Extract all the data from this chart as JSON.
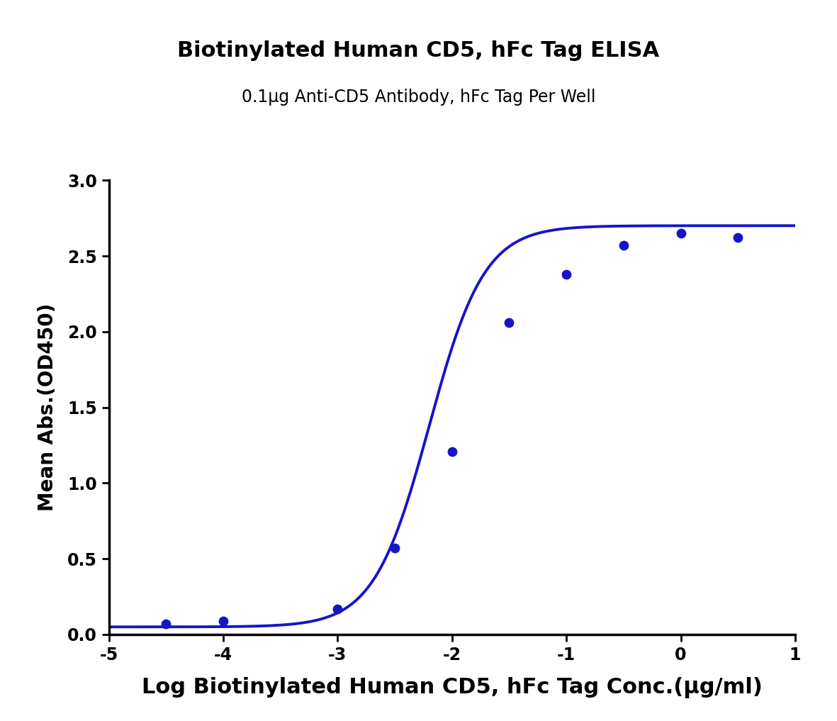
{
  "title": "Biotinylated Human CD5, hFc Tag ELISA",
  "subtitle": "0.1μg Anti-CD5 Antibody, hFc Tag Per Well",
  "xlabel": "Log Biotinylated Human CD5, hFc Tag Conc.(μg/ml)",
  "ylabel": "Mean Abs.(OD450)",
  "title_fontsize": 22,
  "subtitle_fontsize": 17,
  "xlabel_fontsize": 22,
  "ylabel_fontsize": 20,
  "tick_labelsize": 17,
  "line_color": "#1515c8",
  "dot_color": "#1515c8",
  "dot_size": 80,
  "line_width": 2.8,
  "xlim": [
    -5,
    1
  ],
  "ylim": [
    0.0,
    3.0
  ],
  "xticks": [
    -5,
    -4,
    -3,
    -2,
    -1,
    0,
    1
  ],
  "yticks": [
    0.0,
    0.5,
    1.0,
    1.5,
    2.0,
    2.5,
    3.0
  ],
  "data_x": [
    -4.5,
    -4.0,
    -3.0,
    -2.5,
    -2.0,
    -1.5,
    -1.0,
    -0.5,
    0.0,
    0.5
  ],
  "data_y": [
    0.07,
    0.09,
    0.17,
    0.57,
    1.21,
    2.06,
    2.38,
    2.57,
    2.65,
    2.62
  ],
  "background_color": "#ffffff"
}
